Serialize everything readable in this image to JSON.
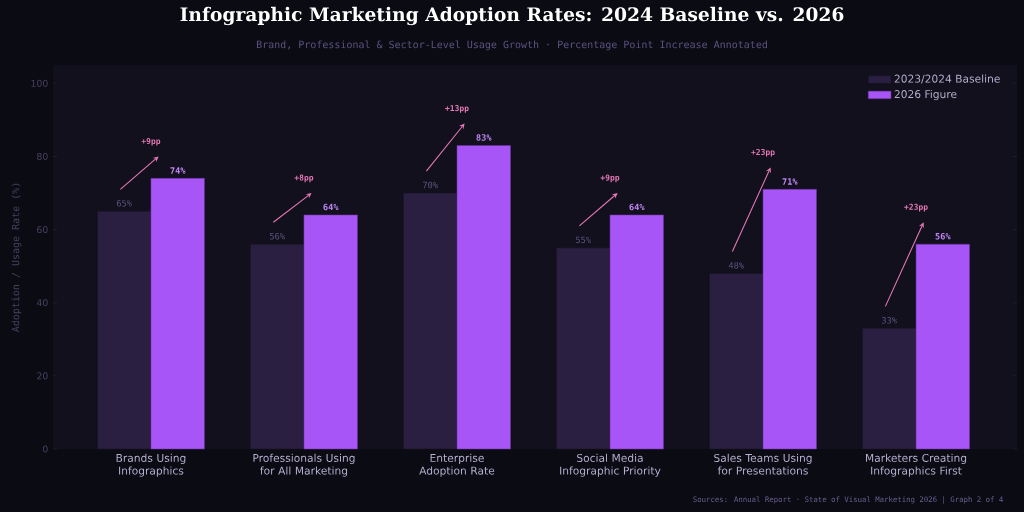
{
  "chart_data": {
    "type": "bar",
    "title": "Infographic Marketing Adoption Rates: 2024 Baseline vs. 2026",
    "subtitle": "Brand, Professional & Sector-Level Usage Growth  ·  Percentage Point Increase Annotated",
    "ylabel": "Adoption / Usage Rate (%)",
    "categories": [
      "Brands Using Infographics",
      "Professionals Using for All Marketing",
      "Enterprise Adoption Rate",
      "Social Media Infographic Priority",
      "Sales Teams Using for Presentations",
      "Marketers Creating Infographics First"
    ],
    "series": [
      {
        "name": "2023/2024 Baseline",
        "color": "#2a1f40",
        "values": [
          65,
          56,
          70,
          55,
          48,
          33
        ],
        "value_labels": [
          "65%",
          "56%",
          "70%",
          "55%",
          "48%",
          "33%"
        ]
      },
      {
        "name": "2026 Figure",
        "color": "#a855f7",
        "values": [
          74,
          64,
          83,
          64,
          71,
          56
        ],
        "value_labels": [
          "74%",
          "64%",
          "83%",
          "64%",
          "71%",
          "56%"
        ]
      }
    ],
    "ylim": [
      0,
      105
    ],
    "yticks": [
      0,
      20,
      40,
      60,
      80,
      100
    ],
    "grid": false,
    "legend": "top right",
    "annotations": [
      "+9pp",
      "+8pp",
      "+13pp",
      "+9pp",
      "+23pp",
      "+23pp",
      "Sources: Annual Report · State of Visual Marketing 2026  |  Graph 2 of 4"
    ]
  }
}
